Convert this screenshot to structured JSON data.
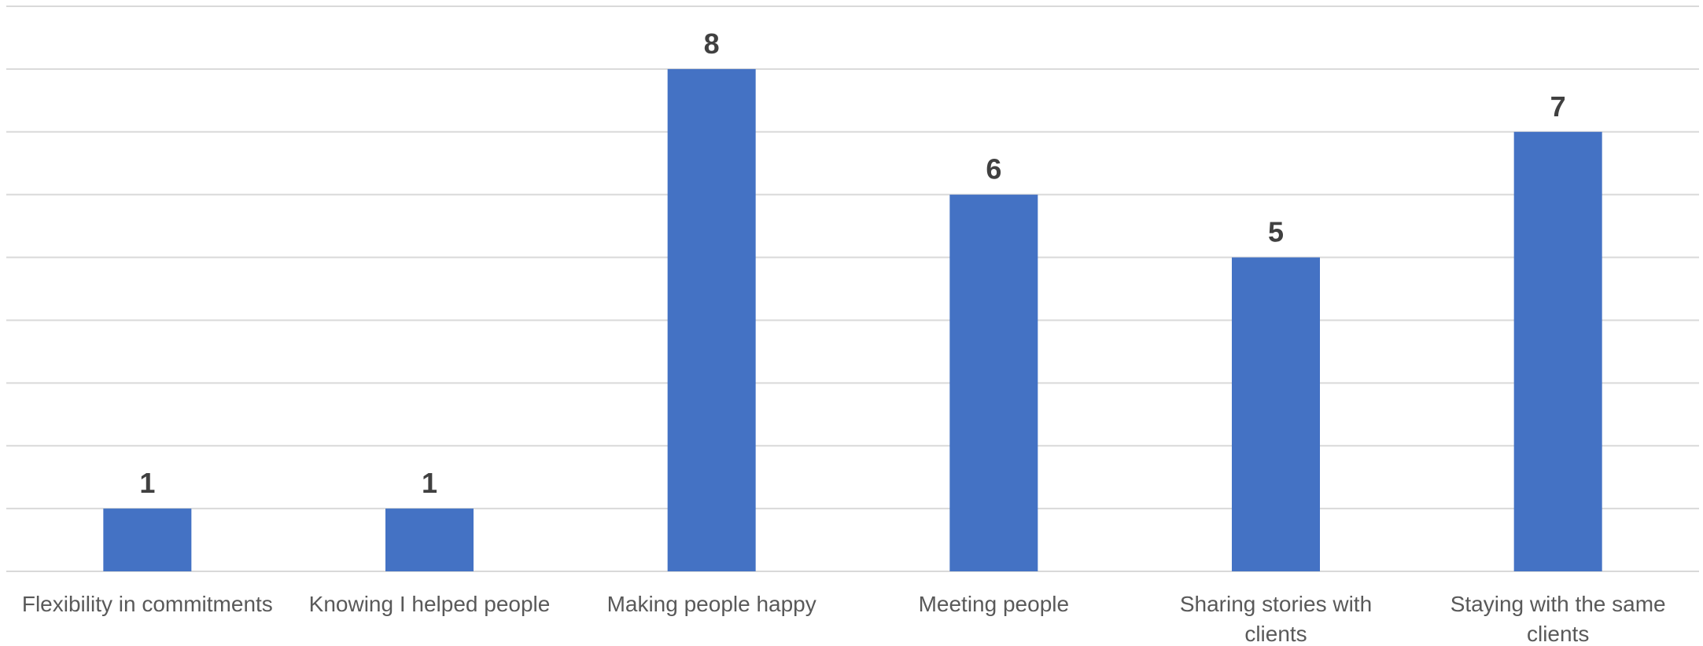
{
  "chart_data": {
    "type": "bar",
    "categories": [
      "Flexibility in commitments",
      "Knowing I helped people",
      "Making people happy",
      "Meeting people",
      "Sharing stories with clients",
      "Staying with the same clients"
    ],
    "series": [
      {
        "values": [
          1,
          1,
          8,
          6,
          5,
          7
        ]
      }
    ],
    "data_labels": [
      "1",
      "1",
      "8",
      "6",
      "5",
      "7"
    ],
    "title": "",
    "xlabel": "",
    "ylabel": "",
    "ylim": [
      0,
      9
    ],
    "grid": true,
    "legend": "none",
    "colors": {
      "bar": "#4472c4",
      "gridline": "#d9d9d9",
      "data_label": "#404040",
      "category_label": "#595959"
    }
  }
}
